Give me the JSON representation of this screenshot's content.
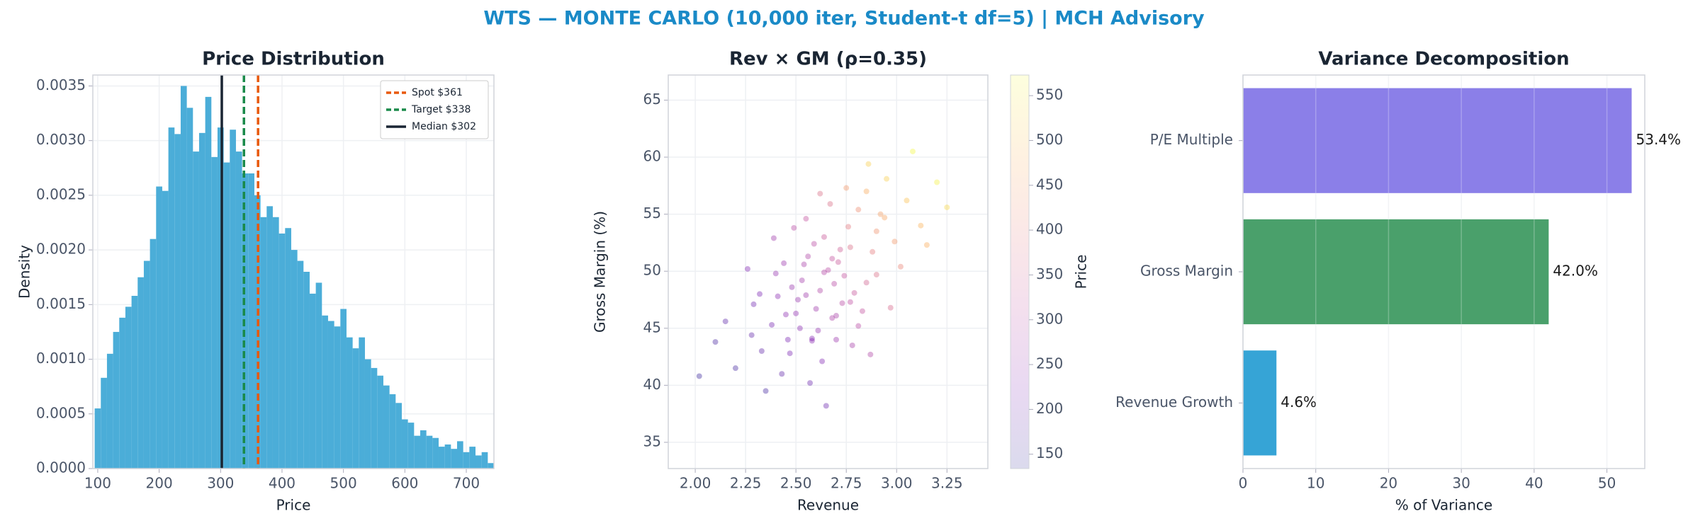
{
  "title": "WTS — MONTE CARLO (10,000 iter, Student-t df=5) | MCH Advisory",
  "chart_data": [
    {
      "type": "histogram",
      "title": "Price Distribution",
      "xlabel": "Price",
      "ylabel": "Density",
      "color": "#4badd8",
      "grid": true,
      "bins": [
        95,
        105,
        115,
        125,
        135,
        145,
        155,
        165,
        175,
        185,
        195,
        205,
        215,
        225,
        235,
        245,
        255,
        265,
        275,
        285,
        295,
        305,
        315,
        325,
        335,
        345,
        355,
        365,
        375,
        385,
        395,
        405,
        415,
        425,
        435,
        445,
        455,
        465,
        475,
        485,
        495,
        505,
        515,
        525,
        535,
        545,
        555,
        565,
        575,
        585,
        595,
        605,
        615,
        625,
        635,
        645,
        655,
        665,
        675,
        685,
        695,
        705,
        715,
        725,
        735,
        745
      ],
      "values": [
        0.00055,
        0.00083,
        0.00105,
        0.00125,
        0.00138,
        0.00148,
        0.00158,
        0.00175,
        0.0019,
        0.0021,
        0.00258,
        0.00254,
        0.00312,
        0.00306,
        0.0035,
        0.0033,
        0.0029,
        0.00307,
        0.0034,
        0.00285,
        0.00312,
        0.0028,
        0.0031,
        0.0029,
        0.0027,
        0.0027,
        0.0025,
        0.0023,
        0.0024,
        0.0023,
        0.00215,
        0.0022,
        0.002,
        0.0019,
        0.0018,
        0.0016,
        0.0017,
        0.0014,
        0.00135,
        0.0013,
        0.00146,
        0.0012,
        0.0011,
        0.0012,
        0.001,
        0.00092,
        0.00085,
        0.00076,
        0.00068,
        0.0006,
        0.00045,
        0.00042,
        0.0003,
        0.00035,
        0.0003,
        0.00028,
        0.0002,
        0.00022,
        0.00018,
        0.00025,
        0.00015,
        0.0002,
        0.00012,
        0.00015,
        5e-05
      ],
      "xlim": [
        92,
        745
      ],
      "xticks": [
        100,
        200,
        300,
        400,
        500,
        600,
        700
      ],
      "ylim": [
        0,
        0.0036
      ],
      "yticks": [
        {
          "value": 0,
          "label": "0.0000"
        },
        {
          "value": 0.0005,
          "label": "0.0005"
        },
        {
          "value": 0.001,
          "label": "0.0010"
        },
        {
          "value": 0.0015,
          "label": "0.0015"
        },
        {
          "value": 0.002,
          "label": "0.0020"
        },
        {
          "value": 0.0025,
          "label": "0.0025"
        },
        {
          "value": 0.003,
          "label": "0.0030"
        },
        {
          "value": 0.0035,
          "label": "0.0035"
        }
      ],
      "lines": [
        {
          "name": "Spot $361",
          "value": 361,
          "color": "#e8590c",
          "dashed": true
        },
        {
          "name": "Target $338",
          "value": 338,
          "color": "#1a8a4a",
          "dashed": true
        },
        {
          "name": "Median $302",
          "value": 302,
          "color": "#1a2533",
          "dashed": false
        }
      ],
      "legend": "upper right"
    },
    {
      "type": "scatter",
      "title": "Rev × GM (ρ=0.35)",
      "xlabel": "Revenue",
      "ylabel": "Gross Margin (%)",
      "clabel": "Price",
      "grid": true,
      "x": [
        2.45,
        2.71,
        2.58,
        2.9,
        2.62,
        2.33,
        2.77,
        2.51,
        3.05,
        2.68,
        2.4,
        2.85,
        2.56,
        2.73,
        2.2,
        2.95,
        2.64,
        2.47,
        2.81,
        2.6,
        3.12,
        2.38,
        2.7,
        2.53,
        2.88,
        2.66,
        2.29,
        2.99,
        2.57,
        2.75,
        2.44,
        2.83,
        2.61,
        2.15,
        3.2,
        2.69,
        2.49,
        2.78,
        2.55,
        2.92,
        2.35,
        2.72,
        2.63,
        3.02,
        2.41,
        2.86,
        2.52,
        2.67,
        2.79,
        2.26,
        2.59,
        2.97,
        2.46,
        2.74,
        2.65,
        3.08,
        2.39,
        2.81,
        2.54,
        2.7,
        2.1,
        2.9,
        2.62,
        2.48,
        2.76,
        2.32,
        2.87,
        2.58,
        3.15,
        2.68,
        2.43,
        2.94,
        2.55,
        2.77,
        2.28,
        2.64,
        3.25,
        2.5,
        2.85,
        2.02
      ],
      "y": [
        46.2,
        50.8,
        44.1,
        53.5,
        48.3,
        43.0,
        52.1,
        47.5,
        56.2,
        45.9,
        49.8,
        49.0,
        51.3,
        47.2,
        41.5,
        58.1,
        53.0,
        42.8,
        55.4,
        46.7,
        54.0,
        45.3,
        44.0,
        49.2,
        51.7,
        50.1,
        47.1,
        52.6,
        40.2,
        57.3,
        50.7,
        46.5,
        44.8,
        45.6,
        57.8,
        48.9,
        53.8,
        43.5,
        47.9,
        55.0,
        39.5,
        51.9,
        42.1,
        50.4,
        47.8,
        59.4,
        45.0,
        55.9,
        48.1,
        50.2,
        52.4,
        46.8,
        44.0,
        49.6,
        38.2,
        60.5,
        52.9,
        45.2,
        50.6,
        46.1,
        43.8,
        49.7,
        56.8,
        48.6,
        53.9,
        48.0,
        42.7,
        43.9,
        52.3,
        51.1,
        41.0,
        54.7,
        54.6,
        47.3,
        44.4,
        49.9,
        55.6,
        46.3,
        57.0,
        40.8
      ],
      "c": [
        240,
        330,
        230,
        430,
        290,
        190,
        370,
        255,
        500,
        285,
        250,
        350,
        290,
        300,
        160,
        520,
        330,
        215,
        420,
        265,
        480,
        210,
        260,
        270,
        395,
        305,
        205,
        440,
        200,
        440,
        260,
        320,
        250,
        185,
        560,
        300,
        300,
        275,
        265,
        450,
        160,
        340,
        225,
        410,
        235,
        520,
        235,
        370,
        325,
        225,
        305,
        360,
        215,
        320,
        200,
        570,
        265,
        300,
        280,
        280,
        165,
        370,
        370,
        255,
        390,
        215,
        290,
        235,
        475,
        320,
        190,
        460,
        320,
        310,
        190,
        295,
        530,
        245,
        470,
        150
      ],
      "colormap": [
        "#0d0887",
        "#6a00a8",
        "#b12a90",
        "#e16462",
        "#fca636",
        "#f0f921"
      ],
      "alpha": 0.35,
      "colorbar_alpha": 0.15,
      "xlim": [
        1.866,
        3.453
      ],
      "xticks": [
        {
          "value": 2,
          "label": "2.00"
        },
        {
          "value": 2.25,
          "label": "2.25"
        },
        {
          "value": 2.5,
          "label": "2.50"
        },
        {
          "value": 2.75,
          "label": "2.75"
        },
        {
          "value": 3,
          "label": "3.00"
        },
        {
          "value": 3.25,
          "label": "3.25"
        }
      ],
      "ylim": [
        32.7,
        67.2
      ],
      "yticks": [
        35,
        40,
        45,
        50,
        55,
        60,
        65
      ],
      "clim": [
        134,
        573
      ],
      "cticks": [
        150,
        200,
        250,
        300,
        350,
        400,
        450,
        500,
        550
      ]
    },
    {
      "type": "barh",
      "title": "Variance Decomposition",
      "xlabel": "% of Variance",
      "grid": true,
      "categories": [
        "Revenue Growth",
        "Gross Margin",
        "P/E Multiple"
      ],
      "values": [
        4.6,
        42.0,
        53.4
      ],
      "value_labels": [
        "4.6%",
        "42.0%",
        "53.4%"
      ],
      "colors": [
        "#36a4d6",
        "#4aa06b",
        "#8b7fe8"
      ],
      "xlim": [
        0,
        55.2
      ],
      "xticks": [
        0,
        10,
        20,
        30,
        40,
        50
      ]
    }
  ]
}
